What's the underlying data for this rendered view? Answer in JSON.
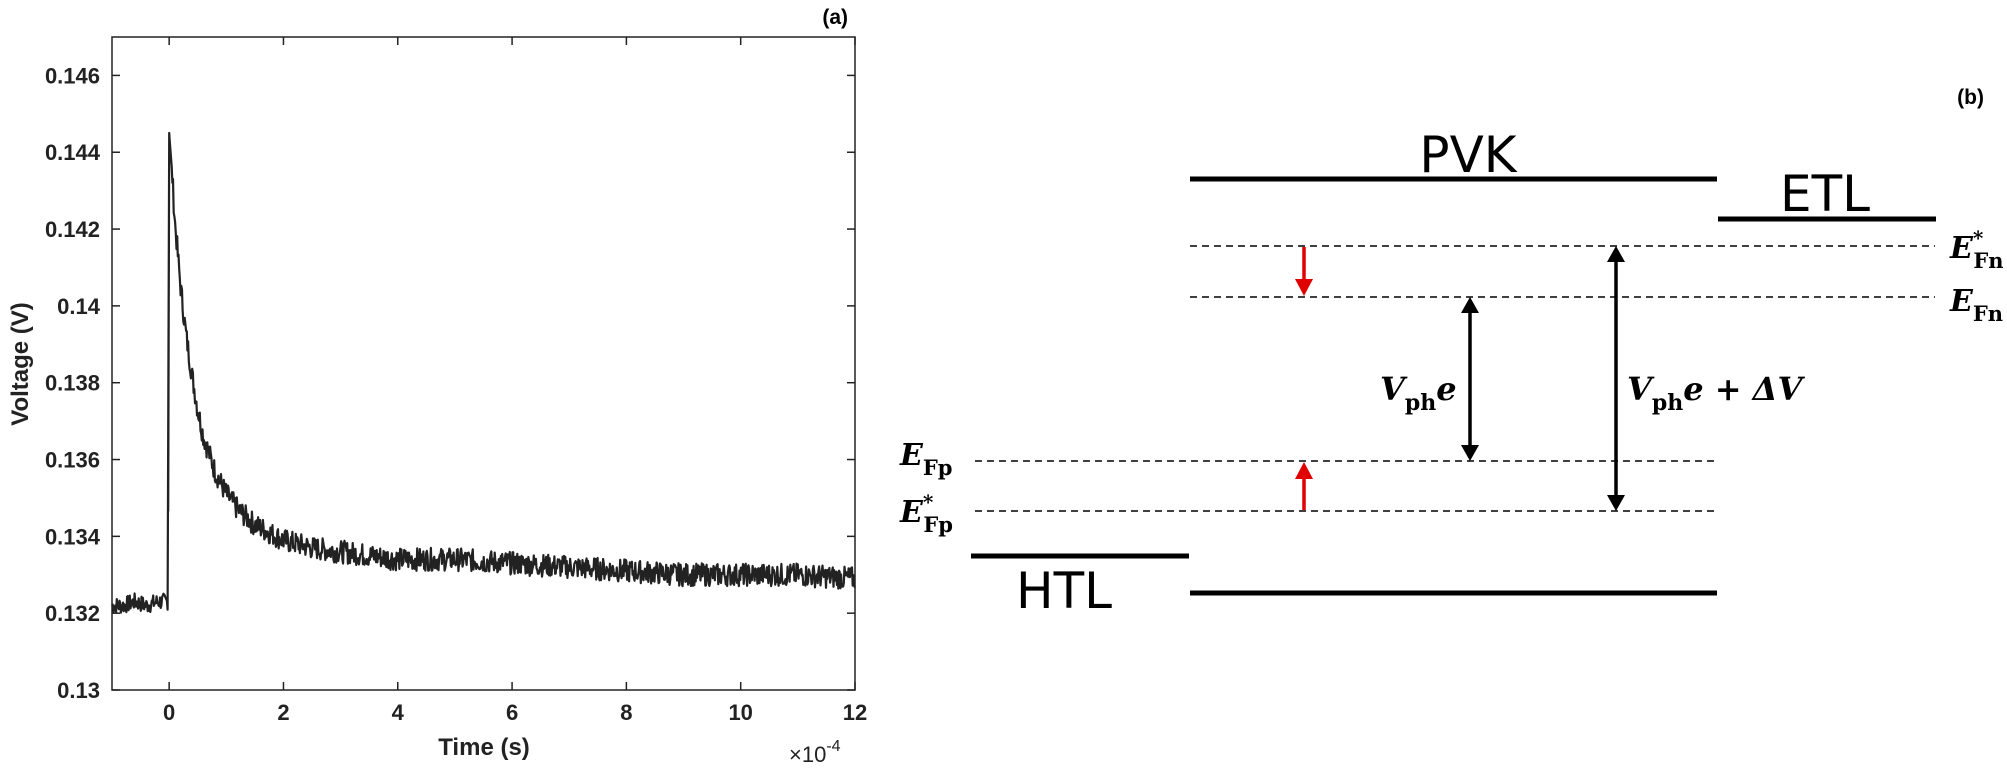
{
  "chart_data": {
    "type": "line",
    "panel_label": "(a)",
    "xlabel": "Time (s)",
    "ylabel": "Voltage (V)",
    "x_multiplier": "×10",
    "x_multiplier_exp": "-4",
    "xlim": [
      -1,
      12
    ],
    "ylim": [
      0.13,
      0.147
    ],
    "x_ticks": [
      0,
      2,
      4,
      6,
      8,
      10,
      12
    ],
    "x_tick_labels": [
      "0",
      "2",
      "4",
      "6",
      "8",
      "10",
      "12"
    ],
    "y_ticks": [
      0.13,
      0.132,
      0.134,
      0.136,
      0.138,
      0.14,
      0.142,
      0.144,
      0.146
    ],
    "y_tick_labels": [
      "0.13",
      "0.132",
      "0.134",
      "0.136",
      "0.138",
      "0.14",
      "0.142",
      "0.144",
      "0.146"
    ],
    "grid": false,
    "line_color": "#222222",
    "series": [
      {
        "x": [
          -1,
          -0.8,
          -0.6,
          -0.4,
          -0.2,
          -0.02,
          0,
          0.05,
          0.1,
          0.2,
          0.3,
          0.4,
          0.5,
          0.6,
          0.8,
          1.0,
          1.2,
          1.5,
          2.0,
          2.5,
          3.0,
          3.5,
          4.0,
          5.0,
          6.0,
          7.0,
          8.0,
          9.0,
          10.0,
          11.0,
          12.0
        ],
        "values": [
          0.1322,
          0.1322,
          0.1323,
          0.1322,
          0.1323,
          0.1323,
          0.1445,
          0.1435,
          0.1422,
          0.1405,
          0.1392,
          0.1382,
          0.1373,
          0.1366,
          0.1357,
          0.1351,
          0.1347,
          0.1343,
          0.1339,
          0.1337,
          0.1336,
          0.1335,
          0.1334,
          0.1334,
          0.1333,
          0.1332,
          0.1331,
          0.133,
          0.133,
          0.133,
          0.1329
        ]
      }
    ]
  },
  "diagram": {
    "panel_label": "(b)",
    "pvk_label": "PVK",
    "etl_label": "ETL",
    "htl_label": "HTL",
    "efn_star": {
      "E": "E",
      "sub": "Fn",
      "sup": "*"
    },
    "efn": {
      "E": "E",
      "sub": "Fn"
    },
    "efp": {
      "E": "E",
      "sub": "Fp"
    },
    "efp_star": {
      "E": "E",
      "sub": "Fp",
      "sup": "*"
    },
    "vph_label": {
      "V": "V",
      "sub": "ph",
      "e": "e"
    },
    "vph_dv_label": {
      "V": "V",
      "sub": "ph",
      "rest": "e + ΔV"
    },
    "arrow_color": "#e00000"
  }
}
